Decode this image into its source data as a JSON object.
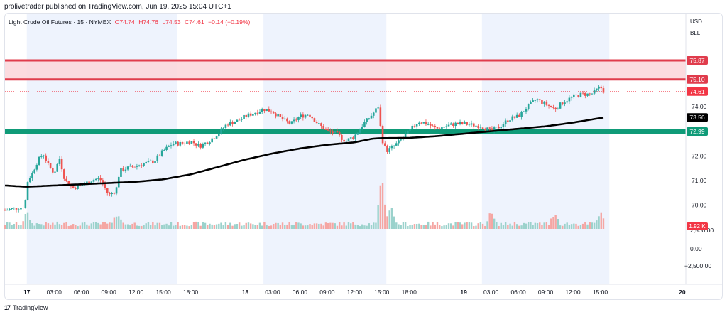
{
  "header": "prolivetrader published on TradingView.com, Jun 19, 2025 15:04 UTC+1",
  "legend": {
    "symbol": "Light Crude Oil Futures · 15 · NYMEX",
    "open": "O74.74",
    "high": "H74.76",
    "low": "L74.53",
    "close": "C74.61",
    "change": "−0.14 (−0.19%)"
  },
  "currency": [
    "USD",
    "BLL"
  ],
  "footer": {
    "brand": "TradingView"
  },
  "colors": {
    "up": "#26a69a",
    "down": "#ef5350",
    "session_bg": "#eef3fd",
    "resistance_zone": "#fbd5d9",
    "resistance_line": "#e03c4c",
    "support_line": "#0f9b78",
    "ma": "#000000"
  },
  "chart_data": {
    "type": "candlestick",
    "symbol": "Light Crude Oil Futures",
    "interval": "15",
    "exchange": "NYMEX",
    "price_axis_ticks": [
      "70.00",
      "71.00",
      "72.00",
      "74.00"
    ],
    "price_range": [
      69.3,
      75.9
    ],
    "volume_axis_ticks": [
      "2,500.00",
      "0.00",
      "−2,500.00"
    ],
    "time_axis_ticks": [
      "17",
      "03:00",
      "06:00",
      "09:00",
      "12:00",
      "15:00",
      "18:00",
      "18",
      "03:00",
      "06:00",
      "09:00",
      "12:00",
      "15:00",
      "18:00",
      "19",
      "03:00",
      "06:00",
      "09:00",
      "12:00",
      "15:00",
      "20"
    ],
    "time_axis_hours": [
      0,
      3,
      6,
      9,
      12,
      15,
      18,
      24,
      27,
      30,
      33,
      36,
      39,
      42,
      48,
      51,
      54,
      57,
      60,
      63,
      72
    ],
    "time_range_hours": [
      -2.4,
      72.4
    ],
    "sessions_hours": [
      [
        0,
        16.5
      ],
      [
        26,
        39.5
      ],
      [
        50,
        64
      ]
    ],
    "resistance_zone": [
      75.1,
      75.87
    ],
    "resistance_levels": [
      "75.87",
      "75.10"
    ],
    "support_level": "72.99",
    "current_price": "74.61",
    "ma_last": "73.56",
    "volume_last": "1.92 K",
    "price_path": [
      [
        -2.4,
        69.8
      ],
      [
        -0.2,
        69.95
      ],
      [
        0.0,
        70.9
      ],
      [
        0.6,
        71.3
      ],
      [
        1.2,
        71.8
      ],
      [
        1.8,
        72.1
      ],
      [
        2.4,
        71.6
      ],
      [
        3.0,
        71.3
      ],
      [
        3.6,
        71.9
      ],
      [
        4.2,
        71.0
      ],
      [
        5.0,
        70.7
      ],
      [
        6.0,
        70.8
      ],
      [
        7.0,
        71.0
      ],
      [
        8.0,
        71.1
      ],
      [
        9.0,
        70.4
      ],
      [
        9.8,
        70.6
      ],
      [
        10.2,
        71.4
      ],
      [
        11.0,
        71.5
      ],
      [
        12.0,
        71.6
      ],
      [
        13.0,
        71.7
      ],
      [
        14.0,
        71.8
      ],
      [
        15.0,
        72.2
      ],
      [
        16.0,
        72.5
      ],
      [
        17.0,
        72.5
      ],
      [
        18.0,
        72.6
      ],
      [
        19.0,
        72.4
      ],
      [
        20.0,
        72.6
      ],
      [
        21.0,
        72.9
      ],
      [
        22.0,
        73.3
      ],
      [
        23.0,
        73.4
      ],
      [
        24.0,
        73.6
      ],
      [
        25.0,
        73.75
      ],
      [
        26.0,
        73.9
      ],
      [
        27.0,
        73.8
      ],
      [
        28.0,
        73.5
      ],
      [
        29.0,
        73.3
      ],
      [
        30.0,
        73.6
      ],
      [
        31.0,
        73.7
      ],
      [
        32.0,
        73.3
      ],
      [
        33.0,
        73.0
      ],
      [
        34.0,
        72.9
      ],
      [
        35.0,
        72.6
      ],
      [
        36.0,
        72.8
      ],
      [
        37.0,
        73.3
      ],
      [
        38.0,
        73.7
      ],
      [
        38.6,
        74.0
      ],
      [
        39.0,
        72.7
      ],
      [
        39.5,
        72.2
      ],
      [
        40.0,
        72.3
      ],
      [
        41.0,
        72.6
      ],
      [
        42.0,
        73.0
      ],
      [
        43.0,
        73.4
      ],
      [
        44.0,
        73.3
      ],
      [
        45.0,
        73.1
      ],
      [
        46.0,
        73.2
      ],
      [
        47.0,
        73.3
      ],
      [
        48.0,
        73.3
      ],
      [
        49.0,
        73.25
      ],
      [
        50.0,
        73.2
      ],
      [
        51.0,
        73.0
      ],
      [
        52.0,
        73.2
      ],
      [
        53.0,
        73.5
      ],
      [
        54.0,
        73.6
      ],
      [
        55.0,
        74.0
      ],
      [
        56.0,
        74.3
      ],
      [
        57.0,
        74.1
      ],
      [
        58.0,
        73.9
      ],
      [
        59.0,
        74.2
      ],
      [
        60.0,
        74.4
      ],
      [
        61.0,
        74.5
      ],
      [
        62.0,
        74.5
      ],
      [
        63.0,
        74.8
      ],
      [
        63.4,
        74.61
      ]
    ],
    "ma_path": [
      [
        -2.4,
        70.8
      ],
      [
        0,
        70.75
      ],
      [
        3,
        70.8
      ],
      [
        6,
        70.85
      ],
      [
        9,
        70.9
      ],
      [
        12,
        70.95
      ],
      [
        15,
        71.05
      ],
      [
        18,
        71.25
      ],
      [
        21,
        71.55
      ],
      [
        24,
        71.85
      ],
      [
        27,
        72.1
      ],
      [
        30,
        72.3
      ],
      [
        33,
        72.45
      ],
      [
        36,
        72.55
      ],
      [
        38,
        72.7
      ],
      [
        39,
        72.72
      ],
      [
        42,
        72.73
      ],
      [
        45,
        72.8
      ],
      [
        48,
        72.9
      ],
      [
        51,
        73.0
      ],
      [
        54,
        73.1
      ],
      [
        57,
        73.2
      ],
      [
        60,
        73.35
      ],
      [
        63.4,
        73.56
      ]
    ],
    "volume_spikes_hours": [
      0,
      10,
      39,
      40,
      51,
      58,
      63
    ]
  }
}
